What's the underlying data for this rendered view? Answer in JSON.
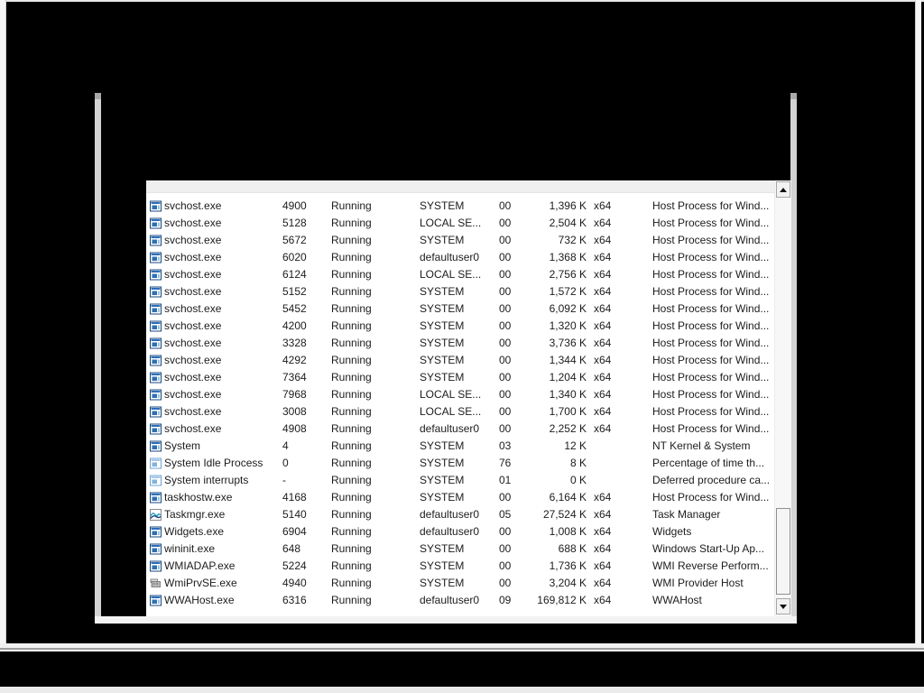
{
  "window": {
    "kind": "task-manager-details-view"
  },
  "colors": {
    "desktop_background": "#000000",
    "list_background": "#ffffff",
    "frame_gray": "#d3d3d3",
    "header_strip": "#efefef",
    "icon_blue": "#2c6fba",
    "icon_navy": "#17477f",
    "row_text": "#1c1c1c"
  },
  "process_list": {
    "rows": [
      {
        "icon": "app-window",
        "name": "svchost.exe",
        "pid": "4900",
        "status": "Running",
        "user": "SYSTEM",
        "cpu": "00",
        "memory": "1,396 K",
        "arch": "x64",
        "description": "Host Process for Wind..."
      },
      {
        "icon": "app-window",
        "name": "svchost.exe",
        "pid": "5128",
        "status": "Running",
        "user": "LOCAL SE...",
        "cpu": "00",
        "memory": "2,504 K",
        "arch": "x64",
        "description": "Host Process for Wind..."
      },
      {
        "icon": "app-window",
        "name": "svchost.exe",
        "pid": "5672",
        "status": "Running",
        "user": "SYSTEM",
        "cpu": "00",
        "memory": "732 K",
        "arch": "x64",
        "description": "Host Process for Wind..."
      },
      {
        "icon": "app-window",
        "name": "svchost.exe",
        "pid": "6020",
        "status": "Running",
        "user": "defaultuser0",
        "cpu": "00",
        "memory": "1,368 K",
        "arch": "x64",
        "description": "Host Process for Wind..."
      },
      {
        "icon": "app-window",
        "name": "svchost.exe",
        "pid": "6124",
        "status": "Running",
        "user": "LOCAL SE...",
        "cpu": "00",
        "memory": "2,756 K",
        "arch": "x64",
        "description": "Host Process for Wind..."
      },
      {
        "icon": "app-window",
        "name": "svchost.exe",
        "pid": "5152",
        "status": "Running",
        "user": "SYSTEM",
        "cpu": "00",
        "memory": "1,572 K",
        "arch": "x64",
        "description": "Host Process for Wind..."
      },
      {
        "icon": "app-window",
        "name": "svchost.exe",
        "pid": "5452",
        "status": "Running",
        "user": "SYSTEM",
        "cpu": "00",
        "memory": "6,092 K",
        "arch": "x64",
        "description": "Host Process for Wind..."
      },
      {
        "icon": "app-window",
        "name": "svchost.exe",
        "pid": "4200",
        "status": "Running",
        "user": "SYSTEM",
        "cpu": "00",
        "memory": "1,320 K",
        "arch": "x64",
        "description": "Host Process for Wind..."
      },
      {
        "icon": "app-window",
        "name": "svchost.exe",
        "pid": "3328",
        "status": "Running",
        "user": "SYSTEM",
        "cpu": "00",
        "memory": "3,736 K",
        "arch": "x64",
        "description": "Host Process for Wind..."
      },
      {
        "icon": "app-window",
        "name": "svchost.exe",
        "pid": "4292",
        "status": "Running",
        "user": "SYSTEM",
        "cpu": "00",
        "memory": "1,344 K",
        "arch": "x64",
        "description": "Host Process for Wind..."
      },
      {
        "icon": "app-window",
        "name": "svchost.exe",
        "pid": "7364",
        "status": "Running",
        "user": "SYSTEM",
        "cpu": "00",
        "memory": "1,204 K",
        "arch": "x64",
        "description": "Host Process for Wind..."
      },
      {
        "icon": "app-window",
        "name": "svchost.exe",
        "pid": "7968",
        "status": "Running",
        "user": "LOCAL SE...",
        "cpu": "00",
        "memory": "1,340 K",
        "arch": "x64",
        "description": "Host Process for Wind..."
      },
      {
        "icon": "app-window",
        "name": "svchost.exe",
        "pid": "3008",
        "status": "Running",
        "user": "LOCAL SE...",
        "cpu": "00",
        "memory": "1,700 K",
        "arch": "x64",
        "description": "Host Process for Wind..."
      },
      {
        "icon": "app-window",
        "name": "svchost.exe",
        "pid": "4908",
        "status": "Running",
        "user": "defaultuser0",
        "cpu": "00",
        "memory": "2,252 K",
        "arch": "x64",
        "description": "Host Process for Wind..."
      },
      {
        "icon": "app-window",
        "name": "System",
        "pid": "4",
        "status": "Running",
        "user": "SYSTEM",
        "cpu": "03",
        "memory": "12 K",
        "arch": "",
        "description": "NT Kernel & System"
      },
      {
        "icon": "app-window-light",
        "name": "System Idle Process",
        "pid": "0",
        "status": "Running",
        "user": "SYSTEM",
        "cpu": "76",
        "memory": "8 K",
        "arch": "",
        "description": "Percentage of time th..."
      },
      {
        "icon": "app-window-light",
        "name": "System interrupts",
        "pid": "-",
        "status": "Running",
        "user": "SYSTEM",
        "cpu": "01",
        "memory": "0 K",
        "arch": "",
        "description": "Deferred procedure ca..."
      },
      {
        "icon": "app-window",
        "name": "taskhostw.exe",
        "pid": "4168",
        "status": "Running",
        "user": "SYSTEM",
        "cpu": "00",
        "memory": "6,164 K",
        "arch": "x64",
        "description": "Host Process for Wind..."
      },
      {
        "icon": "task-manager",
        "name": "Taskmgr.exe",
        "pid": "5140",
        "status": "Running",
        "user": "defaultuser0",
        "cpu": "05",
        "memory": "27,524 K",
        "arch": "x64",
        "description": "Task Manager"
      },
      {
        "icon": "app-window",
        "name": "Widgets.exe",
        "pid": "6904",
        "status": "Running",
        "user": "defaultuser0",
        "cpu": "00",
        "memory": "1,008 K",
        "arch": "x64",
        "description": "Widgets"
      },
      {
        "icon": "app-window",
        "name": "wininit.exe",
        "pid": "648",
        "status": "Running",
        "user": "SYSTEM",
        "cpu": "00",
        "memory": "688 K",
        "arch": "x64",
        "description": "Windows Start-Up Ap..."
      },
      {
        "icon": "app-window",
        "name": "WMIADAP.exe",
        "pid": "5224",
        "status": "Running",
        "user": "SYSTEM",
        "cpu": "00",
        "memory": "1,736 K",
        "arch": "x64",
        "description": "WMI Reverse Perform..."
      },
      {
        "icon": "wmi-provider",
        "name": "WmiPrvSE.exe",
        "pid": "4940",
        "status": "Running",
        "user": "SYSTEM",
        "cpu": "00",
        "memory": "3,204 K",
        "arch": "x64",
        "description": "WMI Provider Host"
      },
      {
        "icon": "app-window",
        "name": "WWAHost.exe",
        "pid": "6316",
        "status": "Running",
        "user": "defaultuser0",
        "cpu": "09",
        "memory": "169,812 K",
        "arch": "x64",
        "description": "WWAHost"
      }
    ]
  }
}
